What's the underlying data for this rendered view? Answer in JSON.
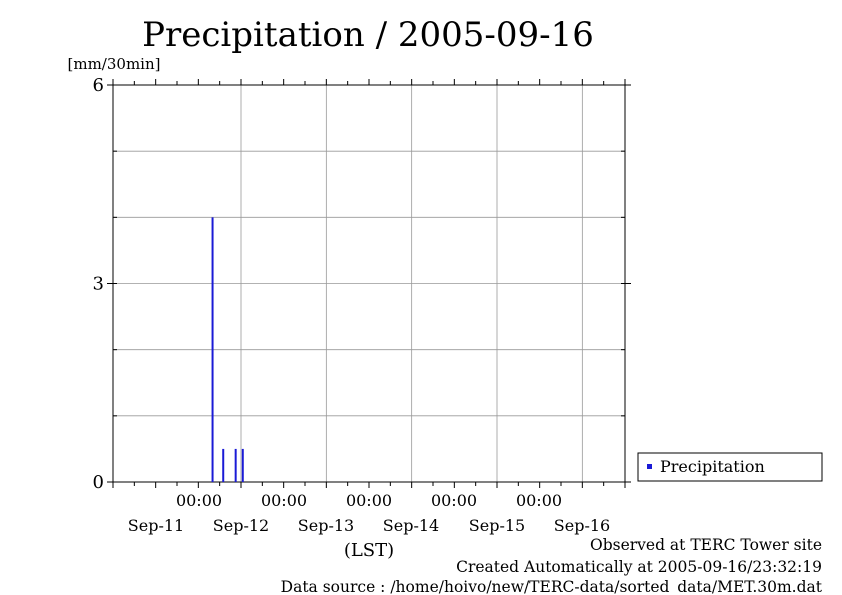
{
  "chart_data": {
    "type": "bar",
    "title": "Precipitation / 2005-09-16",
    "ylabel": "[mm/30min]",
    "xlabel": "(LST)",
    "ylim": [
      0,
      6
    ],
    "y_ticks": [
      "6",
      "3",
      "0"
    ],
    "x_ticks": [
      {
        "time": "00:00",
        "date": "Sep-11"
      },
      {
        "time": "00:00",
        "date": "Sep-12"
      },
      {
        "time": "00:00",
        "date": "Sep-13"
      },
      {
        "time": "00:00",
        "date": "Sep-14"
      },
      {
        "time": "00:00",
        "date": "Sep-15"
      },
      {
        "time": "00:00",
        "date": "Sep-16"
      }
    ],
    "grid": true,
    "legend_position": "right",
    "series": [
      {
        "name": "Precipitation",
        "color": "#1a1ad6",
        "points": [
          {
            "x": "2005-09-11 16:00",
            "y": 4.0
          },
          {
            "x": "2005-09-11 19:00",
            "y": 0.5
          },
          {
            "x": "2005-09-11 22:30",
            "y": 0.5
          },
          {
            "x": "2005-09-12 00:30",
            "y": 0.5
          }
        ]
      }
    ]
  },
  "footer": {
    "observed": "Observed at TERC Tower site",
    "created": "Created Automatically at 2005-09-16/23:32:19",
    "source": "Data source : /home/hoivo/new/TERC-data/sorted_data/MET.30m.dat"
  }
}
